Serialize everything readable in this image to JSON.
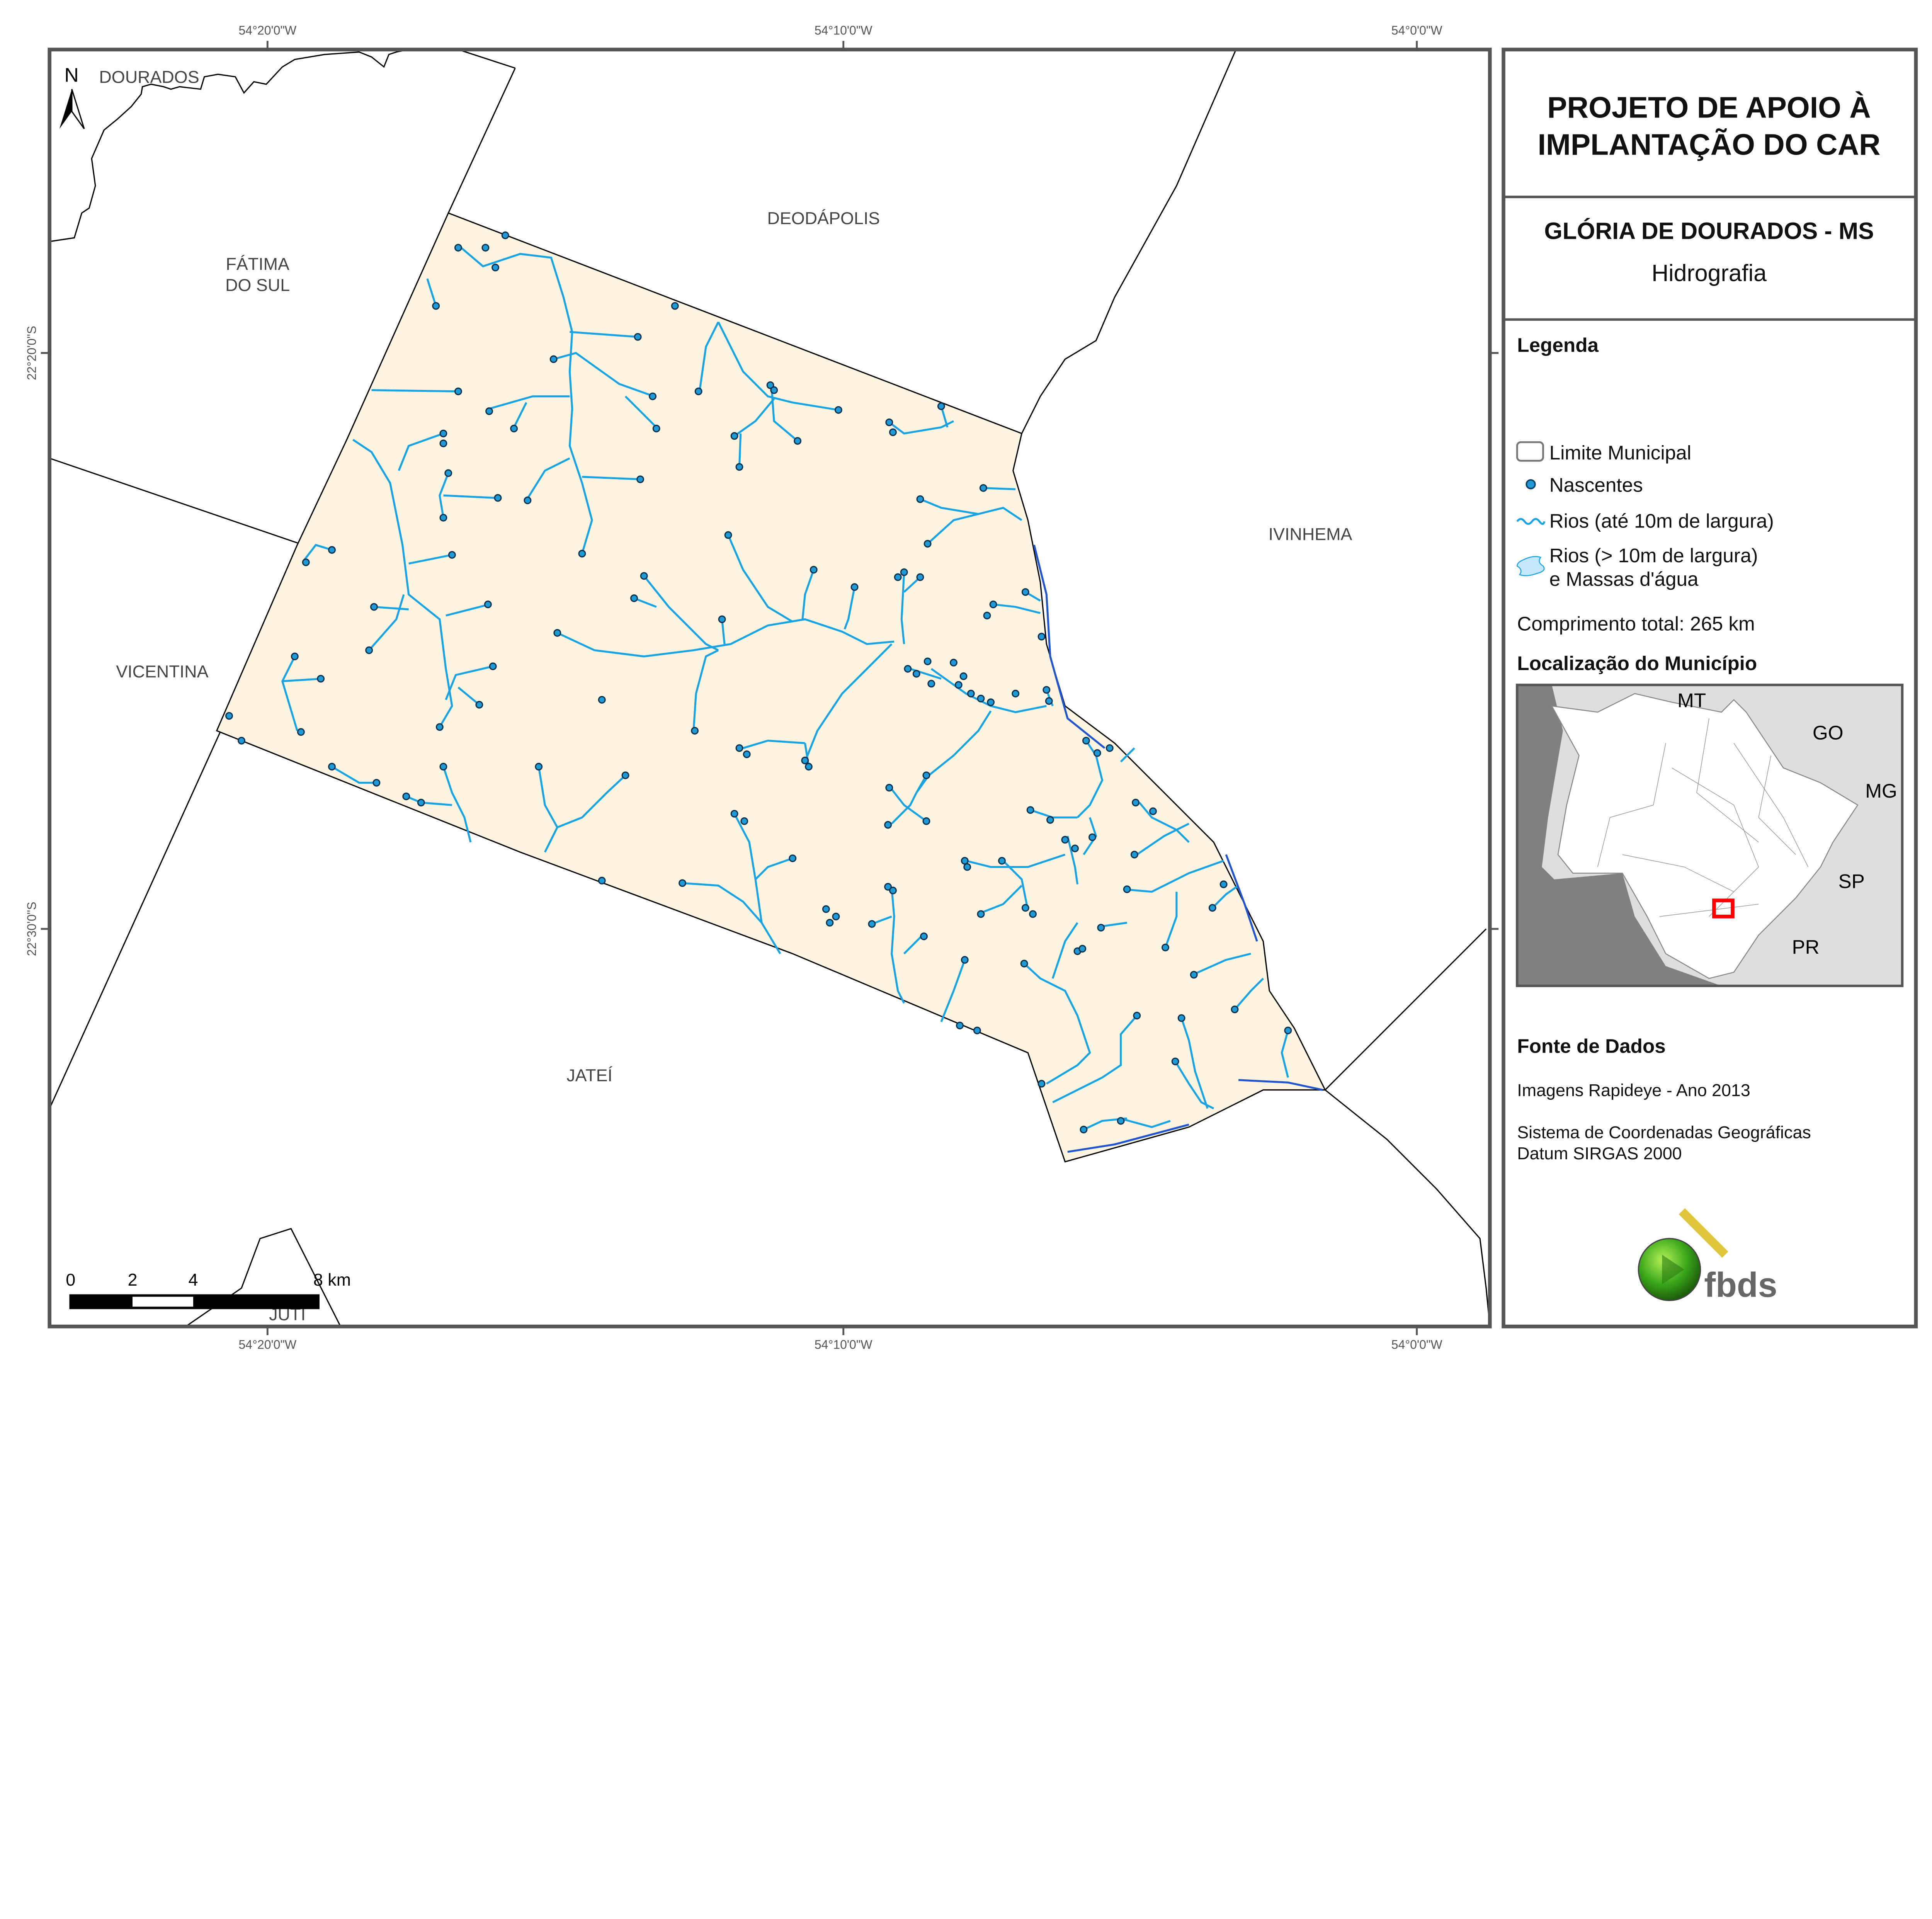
{
  "title": {
    "line1": "PROJETO DE APOIO À",
    "line2": "IMPLANTAÇÃO DO CAR"
  },
  "subtitle": {
    "place": "GLÓRIA DE DOURADOS - MS",
    "theme": "Hidrografia"
  },
  "legend": {
    "heading": "Legenda",
    "items": [
      {
        "label": "Limite Municipal",
        "icon": "rounded-square-outline"
      },
      {
        "label": "Nascentes",
        "icon": "blue-dot"
      },
      {
        "label": "Rios (até 10m de largura)",
        "icon": "blue-wavy-line"
      },
      {
        "label": "Rios (> 10m de largura)",
        "label2": "e Massas d'água",
        "icon": "light-blue-blob"
      }
    ],
    "total_length": "Comprimento total:  265 km"
  },
  "location": {
    "heading": "Localização do Município",
    "states": [
      "MT",
      "GO",
      "MG",
      "SP",
      "PR"
    ]
  },
  "sources": {
    "heading": "Fonte de Dados",
    "lines": [
      "Imagens Rapideye - Ano 2013",
      "Sistema de Coordenadas Geográficas",
      "Datum SIRGAS 2000"
    ]
  },
  "logo": {
    "text": "fbds"
  },
  "map": {
    "municipalities": [
      "DOURADOS",
      "FÁTIMA",
      "DO SUL",
      "DEODÁPOLIS",
      "IVINHEMA",
      "VICENTINA",
      "JATEÍ",
      "JUTI"
    ],
    "lon_labels": [
      "54°20'0\"W",
      "54°10'0\"W",
      "54°0'0\"W"
    ],
    "lat_labels": [
      "22°20'0\"S",
      "22°30'0\"S"
    ],
    "north": "N",
    "scale": {
      "ticks": [
        "0",
        "2",
        "4",
        "8 km"
      ]
    }
  },
  "colors": {
    "municipality_fill": "#fdf5e2",
    "rivers": "#1aa3e0",
    "springs": "#1e9bd7",
    "springs_outline": "#0b3f66",
    "frame": "#555555",
    "inset_highlight": "#ff0000"
  }
}
